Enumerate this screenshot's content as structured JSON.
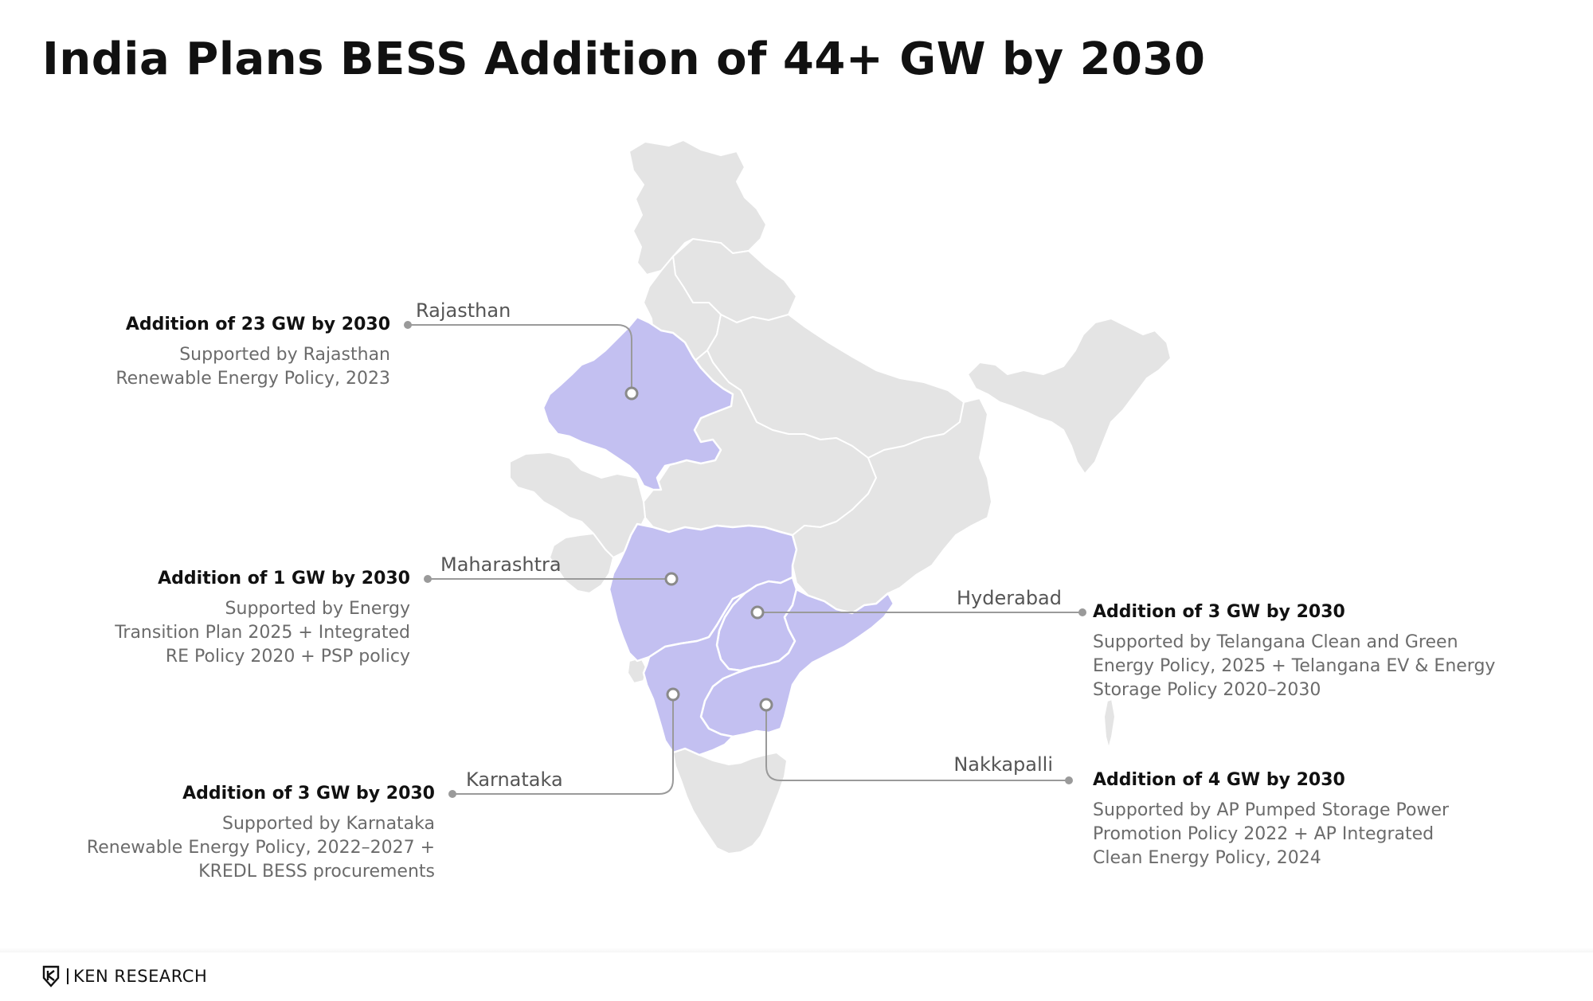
{
  "title": "India Plans BESS Addition of 44+ GW by 2030",
  "colors": {
    "highlight": "#c3c0f1",
    "base_map": "#e4e4e4",
    "leader": "#9a9a9a"
  },
  "regions": {
    "rajasthan": {
      "name": "Rajasthan",
      "headline": "Addition of 23 GW by 2030",
      "desc": [
        "Supported by Rajasthan",
        "Renewable Energy Policy, 2023"
      ]
    },
    "maharashtra": {
      "name": "Maharashtra",
      "headline": "Addition of 1 GW by 2030",
      "desc": [
        "Supported by Energy",
        "Transition Plan 2025 + Integrated",
        "RE Policy 2020 + PSP policy"
      ]
    },
    "karnataka": {
      "name": "Karnataka",
      "headline": "Addition of 3 GW by 2030",
      "desc": [
        "Supported by Karnataka",
        "Renewable Energy Policy, 2022–2027 +",
        "KREDL BESS procurements"
      ]
    },
    "hyderabad": {
      "name": "Hyderabad",
      "headline": "Addition of 3 GW by 2030",
      "desc": [
        "Supported by Telangana Clean and Green",
        "Energy Policy, 2025 + Telangana EV & Energy",
        "Storage Policy 2020–2030"
      ]
    },
    "nakkapalli": {
      "name": "Nakkapalli",
      "headline": "Addition of 4 GW by 2030",
      "desc": [
        "Supported by AP Pumped Storage Power",
        "Promotion Policy 2022 + AP Integrated",
        "Clean Energy Policy, 2024"
      ]
    }
  },
  "footer": {
    "brand": "KEN RESEARCH",
    "logo_mark": "K"
  }
}
